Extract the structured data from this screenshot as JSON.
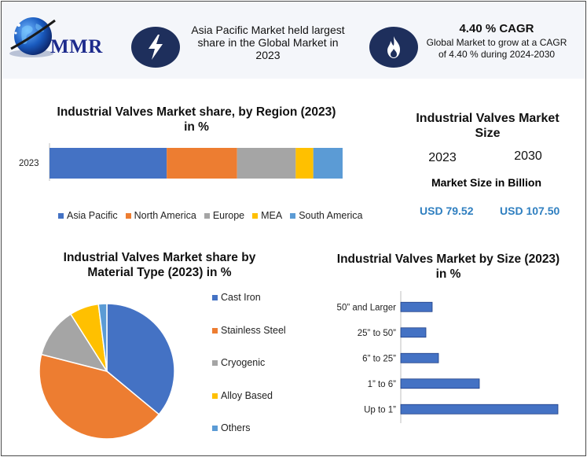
{
  "header": {
    "logo_text": "MMR",
    "info1": "Asia Pacific Market held largest share in the Global Market in 2023",
    "cagr_title": "4.40 % CAGR",
    "cagr_text": "Global Market to grow at a CAGR of 4.40 % during 2024-2030",
    "icons": [
      "globe-icon",
      "lightning-icon",
      "flame-icon"
    ],
    "icon_bg_color": "#1e2f5c"
  },
  "market_size": {
    "title": "Industrial Valves Market Size",
    "year1": "2023",
    "year2": "2030",
    "subtitle": "Market Size in Billion",
    "value1": "USD 79.52",
    "value2": "USD 107.50"
  },
  "chart_data": [
    {
      "type": "bar",
      "orientation": "horizontal-stacked",
      "title": "Industrial Valves Market share, by Region (2023) in %",
      "categories": [
        "2023"
      ],
      "series": [
        {
          "name": "Asia Pacific",
          "values": [
            40
          ],
          "color": "#4472c4"
        },
        {
          "name": "North America",
          "values": [
            24
          ],
          "color": "#ed7d31"
        },
        {
          "name": "Europe",
          "values": [
            20
          ],
          "color": "#a5a5a5"
        },
        {
          "name": "MEA",
          "values": [
            6
          ],
          "color": "#ffc000"
        },
        {
          "name": "South America",
          "values": [
            10
          ],
          "color": "#5b9bd5"
        }
      ],
      "xlim": [
        0,
        100
      ],
      "legend_position": "bottom",
      "grid": false
    },
    {
      "type": "pie",
      "title": "Industrial Valves Market share by Material Type (2023) in %",
      "labels": [
        "Cast Iron",
        "Stainless Steel",
        "Cryogenic",
        "Alloy Based",
        "Others"
      ],
      "values": [
        36,
        43,
        12,
        7,
        2
      ],
      "colors": [
        "#4472c4",
        "#ed7d31",
        "#a5a5a5",
        "#ffc000",
        "#5b9bd5"
      ],
      "legend_position": "right"
    },
    {
      "type": "bar",
      "orientation": "horizontal",
      "title": "Industrial Valves Market by Size (2023) in %",
      "categories": [
        "50” and Larger",
        "25” to 50”",
        "6” to 25”",
        "1” to 6”",
        "Up to 1”"
      ],
      "values": [
        10,
        8,
        12,
        25,
        50
      ],
      "color": "#4472c4",
      "xlim": [
        0,
        55
      ],
      "grid": false
    }
  ]
}
